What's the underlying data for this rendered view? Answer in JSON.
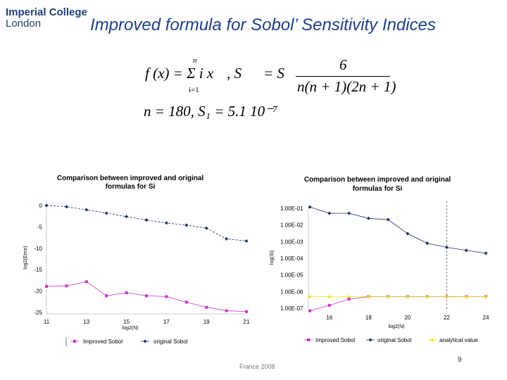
{
  "logo": {
    "line1": "Imperial College",
    "line2": "London"
  },
  "title": "Improved formula for Sobol’ Sensitivity Indices",
  "formula": {
    "line1_left": "f (x) = Σ i x",
    "sum_upper": "n",
    "sum_lower": "i=1",
    "line1_mid": ",  S",
    "line1_eq": "= S",
    "numerator": "6",
    "denominator": "n(n + 1)(2n + 1)",
    "line2": "n = 180,  S₁ = 5.1 10⁻⁷"
  },
  "footer": {
    "text": "France 2008",
    "page": "9"
  },
  "chart_data": [
    {
      "type": "line",
      "title": "Comparison between improved and original formulas for Si",
      "xlabel": "log2(N)",
      "ylabel": "log2(Error)",
      "xlim": [
        11,
        21
      ],
      "ylim": [
        -25,
        0
      ],
      "x_ticks": [
        "11",
        "13",
        "15",
        "17",
        "19",
        "21"
      ],
      "y_ticks": [
        "0",
        "-5",
        "-10",
        "-15",
        "-20",
        "-25"
      ],
      "series": [
        {
          "name": "original Sobol",
          "color": "#1a2a6c",
          "marker": "diamond",
          "x": [
            11,
            12,
            13,
            14,
            15,
            16,
            17,
            18,
            19,
            20,
            21
          ],
          "y": [
            0,
            -0.3,
            -1,
            -1.8,
            -2.6,
            -3.4,
            -4.1,
            -4.6,
            -5.3,
            -7.8,
            -8.3
          ]
        },
        {
          "name": "Improved Sobol",
          "color": "#cc33cc",
          "marker": "square",
          "x": [
            11,
            12,
            13,
            14,
            15,
            16,
            17,
            18,
            19,
            20,
            21
          ],
          "y": [
            -18.9,
            -18.8,
            -17.8,
            -21.1,
            -20.4,
            -21.1,
            -21.3,
            -22.6,
            -23.8,
            -24.6,
            -24.8
          ]
        }
      ],
      "legend": "bottom",
      "grid": false
    },
    {
      "type": "line",
      "title": "Comparison between improved and original formulas for Si",
      "xlabel": "log2(N)",
      "ylabel": "log(Si)",
      "yscale": "log",
      "xlim": [
        15,
        24
      ],
      "ylim": [
        1e-07,
        0.1
      ],
      "x_ticks": [
        "16",
        "18",
        "20",
        "22",
        "24"
      ],
      "y_ticks": [
        "1.00E-01",
        "1.00E-02",
        "1.00E-03",
        "1.00E-04",
        "1.00E-05",
        "1.00E-06",
        "1.00E-07"
      ],
      "vline_x": 22,
      "series": [
        {
          "name": "original Sobol",
          "color": "#1a2a6c",
          "marker": "diamond",
          "x": [
            15,
            16,
            17,
            18,
            19,
            20,
            21,
            22,
            23,
            24
          ],
          "y": [
            0.12,
            0.05,
            0.05,
            0.025,
            0.021,
            0.003,
            0.0008,
            0.00045,
            0.0003,
            0.0002
          ]
        },
        {
          "name": "Improved Sobol",
          "color": "#cc33cc",
          "marker": "square",
          "x": [
            15,
            16,
            17,
            18,
            19,
            20,
            21,
            22,
            23,
            24
          ],
          "y": [
            7e-08,
            1.5e-07,
            3.5e-07,
            5e-07,
            5e-07,
            5e-07,
            5e-07,
            5e-07,
            5e-07,
            5e-07
          ]
        },
        {
          "name": "analytical value",
          "color": "#e6e600",
          "marker": "triangle",
          "x": [
            15,
            16,
            17,
            18,
            19,
            20,
            21,
            22,
            23,
            24
          ],
          "y": [
            5.1e-07,
            5.1e-07,
            5.1e-07,
            5.1e-07,
            5.1e-07,
            5.1e-07,
            5.1e-07,
            5.1e-07,
            5.1e-07,
            5.1e-07
          ]
        }
      ],
      "legend": "bottom",
      "grid": false
    }
  ]
}
